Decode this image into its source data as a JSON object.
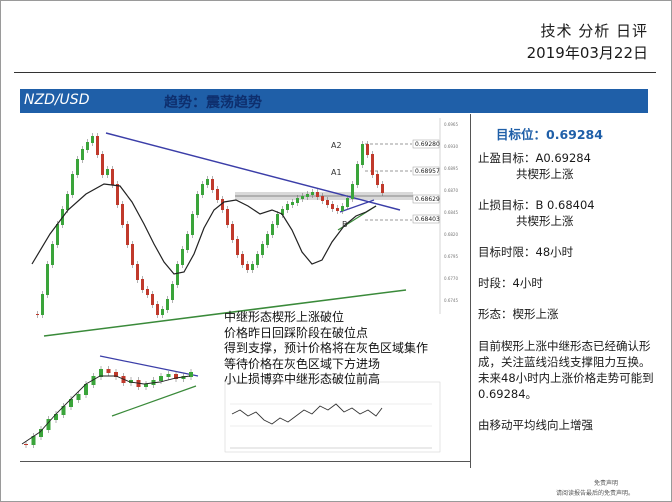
{
  "header": {
    "title": "技术 分析 日评",
    "date": "2019年03月22日"
  },
  "banner": {
    "pair": "NZD/USD",
    "trend": "趋势：震荡趋势"
  },
  "chart_labels": {
    "a2": "A2",
    "a1": "A1",
    "b": "B",
    "price_1": "0.69280",
    "price_2": "0.68957",
    "price_3": "0.68629",
    "price_4": "0.68403"
  },
  "chart_note": [
    "中继形态楔形上涨破位",
    "价格昨日回踩阶段在破位点",
    "得到支撑，预计价格将在灰色区域集作",
    "等待价格在灰色区域下方进场",
    "小止损博弈中继形态破位前高"
  ],
  "panel": {
    "target": "目标位：0.69284",
    "take_profit": "止盈目标：A0.69284",
    "take_profit_note": "共楔形上涨",
    "stop_loss": "止损目标：B 0.68404",
    "stop_loss_note": "共楔形上涨",
    "time_limit": "目标时限：48小时",
    "timeframe": "时段：4小时",
    "pattern": "形态：楔形上涨",
    "summary": "目前楔形上涨中继形态已经确认形成，关注蓝线沿线支撑阻力互换。未来48小时内上涨价格走势可能到0.69284。",
    "ma_note": "由移动平均线向上增强"
  },
  "footer": {
    "line1": "免责声明",
    "line2": "请阅读报告最后的免责声明。"
  },
  "colors": {
    "banner": "#1f5fa8",
    "trend_text": "#0e2f6e",
    "bull": "#3aa43a",
    "bear": "#c0392b",
    "trendline": "#3b3ea8",
    "support": "#3a8a3a"
  }
}
